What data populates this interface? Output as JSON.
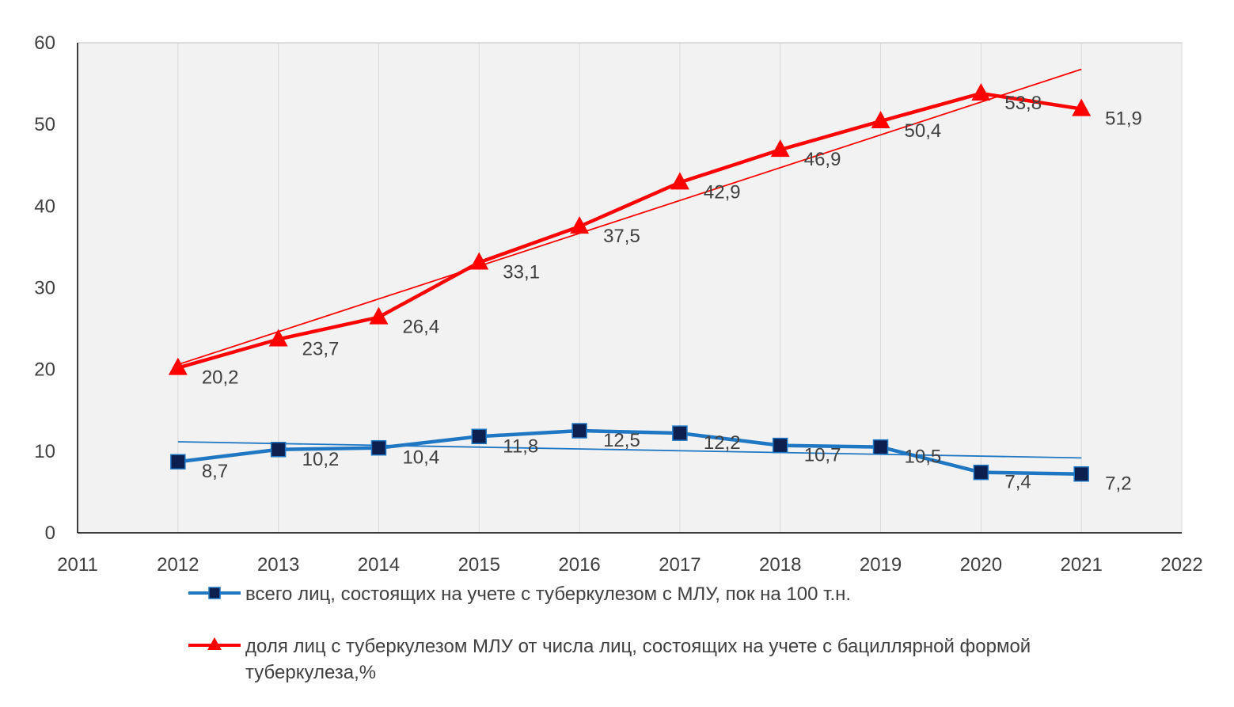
{
  "chart_data": {
    "type": "line",
    "x": [
      2012,
      2013,
      2014,
      2015,
      2016,
      2017,
      2018,
      2019,
      2020,
      2021
    ],
    "xlim": [
      2011,
      2022
    ],
    "ylim": [
      0,
      60
    ],
    "x_ticks": [
      "2011",
      "2012",
      "2013",
      "2014",
      "2015",
      "2016",
      "2017",
      "2018",
      "2019",
      "2020",
      "2021",
      "2022"
    ],
    "y_ticks": [
      "0",
      "10",
      "20",
      "30",
      "40",
      "50",
      "60"
    ],
    "grid": "vertical",
    "legend_position": "bottom",
    "trendline": "linear",
    "series": [
      {
        "name": "всего лиц, состоящих на учете с туберкулезом с МЛУ, пок на 100 т.н.",
        "color": "#1f77c4",
        "marker": "square",
        "marker_color": "#0d1f4f",
        "values": [
          8.7,
          10.2,
          10.4,
          11.8,
          12.5,
          12.2,
          10.7,
          10.5,
          7.4,
          7.2
        ],
        "labels": [
          "8,7",
          "10,2",
          "10,4",
          "11,8",
          "12,5",
          "12,2",
          "10,7",
          "10,5",
          "7,4",
          "7,2"
        ]
      },
      {
        "name": "доля лиц с туберкулезом МЛУ от числа лиц, состоящих на учете с бациллярной формой туберкулеза,%",
        "color": "#ff0000",
        "marker": "triangle",
        "marker_color": "#ff0000",
        "values": [
          20.2,
          23.7,
          26.4,
          33.1,
          37.5,
          42.9,
          46.9,
          50.4,
          53.8,
          51.9
        ],
        "labels": [
          "20,2",
          "23,7",
          "26,4",
          "33,1",
          "37,5",
          "42,9",
          "46,9",
          "50,4",
          "53,8",
          "51,9"
        ]
      }
    ]
  },
  "legend": {
    "blue_label": "всего лиц, состоящих на учете с туберкулезом с МЛУ, пок на 100 т.н.",
    "red_label_line1": "доля лиц с туберкулезом МЛУ от числа лиц, состоящих на учете с бациллярной формой",
    "red_label_line2": "туберкулеза,%"
  }
}
